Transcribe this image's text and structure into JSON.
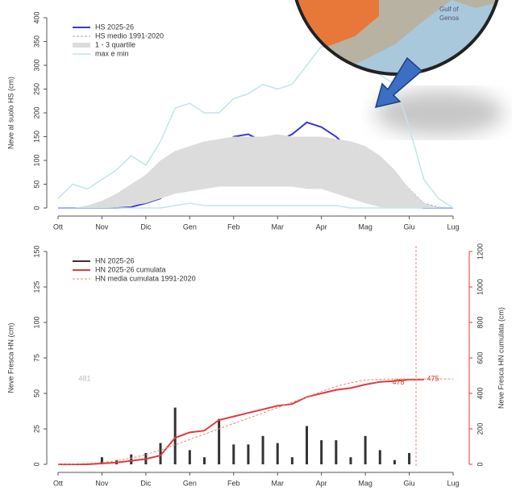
{
  "chart_data": [
    {
      "type": "line",
      "y_label": "Neve al suolo HS (cm)",
      "x": [
        "Ott",
        null,
        null,
        "Nov",
        null,
        null,
        "Dic",
        null,
        null,
        "Gen",
        null,
        null,
        "Feb",
        null,
        null,
        "Mar",
        null,
        null,
        "Apr",
        null,
        null,
        "Mag",
        null,
        null,
        "Giu",
        null,
        null,
        "Lug"
      ],
      "ylim": [
        0,
        400
      ],
      "yticks": [
        0,
        50,
        100,
        150,
        200,
        250,
        300,
        350,
        400
      ],
      "legend": "top-left",
      "series": [
        {
          "name": "HS 2025-26",
          "type": "line",
          "color": "#3a3acc",
          "width": 2,
          "values": [
            0,
            0,
            0,
            0,
            0,
            2,
            10,
            20,
            60,
            110,
            90,
            120,
            150,
            155,
            140,
            140,
            155,
            180,
            170,
            150,
            120,
            95,
            80,
            40,
            5,
            0,
            0,
            0
          ]
        },
        {
          "name": "HS medio 1991-2020",
          "type": "line",
          "dash": true,
          "color": "#9aa0c8",
          "width": 1,
          "values": [
            0,
            0,
            2,
            5,
            10,
            20,
            35,
            45,
            55,
            65,
            70,
            75,
            80,
            85,
            90,
            92,
            95,
            98,
            100,
            100,
            102,
            100,
            95,
            75,
            40,
            10,
            2,
            0
          ]
        },
        {
          "name": "1 - 3 quartile",
          "type": "band",
          "color": "#dcdcdc",
          "low": [
            0,
            0,
            0,
            0,
            2,
            5,
            10,
            20,
            30,
            35,
            40,
            45,
            45,
            45,
            45,
            45,
            45,
            40,
            40,
            30,
            20,
            10,
            2,
            0,
            0,
            0,
            0,
            0
          ],
          "high": [
            0,
            0,
            5,
            15,
            30,
            50,
            70,
            100,
            120,
            130,
            140,
            145,
            150,
            150,
            150,
            155,
            150,
            150,
            150,
            145,
            140,
            130,
            110,
            80,
            40,
            10,
            0,
            0
          ]
        },
        {
          "name": "max e min",
          "type": "line",
          "color": "#c4e4ea",
          "width": 1.5,
          "values": [
            20,
            50,
            40,
            60,
            80,
            110,
            90,
            140,
            210,
            220,
            200,
            200,
            230,
            240,
            260,
            250,
            260,
            300,
            340,
            330,
            320,
            300,
            280,
            260,
            170,
            60,
            20,
            0
          ],
          "values_min": [
            0,
            0,
            0,
            0,
            0,
            0,
            0,
            0,
            5,
            10,
            5,
            5,
            5,
            5,
            5,
            5,
            5,
            5,
            5,
            5,
            0,
            0,
            0,
            0,
            0,
            0,
            0,
            0
          ]
        }
      ]
    },
    {
      "type": "bar_line",
      "y_label": "Neve Fresca HN (cm)",
      "y2_label": "Neve Fresca HN cumulata (cm)",
      "x": [
        "Ott",
        null,
        null,
        "Nov",
        null,
        null,
        "Dic",
        null,
        null,
        "Gen",
        null,
        null,
        "Feb",
        null,
        null,
        "Mar",
        null,
        null,
        "Apr",
        null,
        null,
        "Mag",
        null,
        null,
        "Giu",
        null,
        null,
        "Lug"
      ],
      "ylim": [
        0,
        150
      ],
      "yticks": [
        0,
        25,
        50,
        75,
        100,
        125,
        150
      ],
      "y2lim": [
        0,
        1200
      ],
      "y2ticks": [
        0,
        200,
        400,
        600,
        800,
        1000,
        1200
      ],
      "y2color": "#e03a3a",
      "legend": "top-left",
      "series": [
        {
          "name": "HN 2025-26",
          "type": "bar",
          "color": "#333333",
          "values": [
            0,
            0,
            0,
            5,
            3,
            7,
            8,
            15,
            40,
            10,
            5,
            32,
            14,
            14,
            20,
            15,
            5,
            27,
            17,
            17,
            5,
            20,
            10,
            3,
            8,
            0,
            0,
            0
          ]
        },
        {
          "name": "HN 2025-26 cumulata",
          "type": "line",
          "axis": "y2",
          "color": "#e03a3a",
          "width": 2,
          "values": [
            0,
            0,
            0,
            5,
            10,
            20,
            30,
            50,
            150,
            180,
            190,
            250,
            270,
            290,
            310,
            330,
            340,
            380,
            400,
            420,
            430,
            450,
            465,
            470,
            478,
            478,
            null,
            null
          ]
        },
        {
          "name": "HN media cumulata 1991-2020",
          "type": "line",
          "axis": "y2",
          "dash": true,
          "color": "#e88a7a",
          "width": 1,
          "values": [
            0,
            2,
            5,
            10,
            20,
            35,
            55,
            80,
            110,
            140,
            170,
            200,
            230,
            260,
            290,
            320,
            350,
            380,
            410,
            440,
            460,
            475,
            480,
            481,
            481,
            481,
            481,
            481
          ]
        }
      ],
      "annotations": [
        {
          "text": "481",
          "color": "#bbbbbb"
        },
        {
          "text": "478",
          "color": "#e03a3a"
        },
        {
          "text": "475",
          "color": "#e03a3a"
        }
      ]
    }
  ],
  "inset_map": {
    "labels": [
      "Gulf of",
      "Genoa"
    ]
  }
}
